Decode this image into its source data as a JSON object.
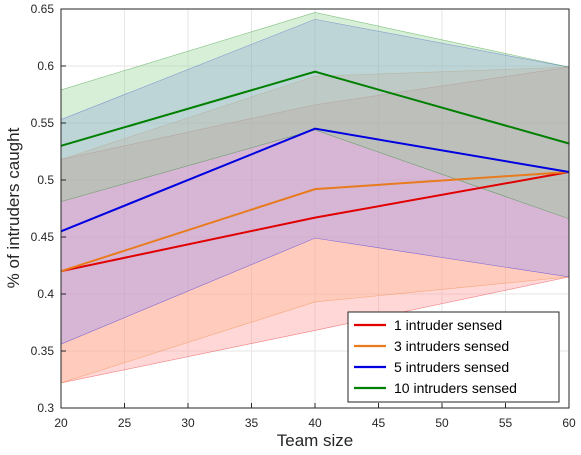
{
  "chart_data": {
    "type": "line",
    "xlabel": "Team size",
    "ylabel": "% of intruders caught",
    "x": [
      20,
      40,
      60
    ],
    "xlim": [
      20,
      60
    ],
    "ylim": [
      0.3,
      0.65
    ],
    "xticks": [
      "20",
      "25",
      "30",
      "35",
      "40",
      "45",
      "50",
      "55",
      "60"
    ],
    "yticks": [
      "0.3",
      "0.35",
      "0.4",
      "0.45",
      "0.5",
      "0.55",
      "0.6",
      "0.65"
    ],
    "grid": true,
    "legend_position": "bottom-right",
    "series": [
      {
        "name": "1 intruder sensed",
        "color": "#e00000",
        "fill": "#ff8c8c",
        "values": [
          0.42,
          0.467,
          0.507
        ],
        "lower": [
          0.322,
          0.368,
          0.415
        ],
        "upper": [
          0.518,
          0.566,
          0.599
        ]
      },
      {
        "name": "3 intruders sensed",
        "color": "#e87b1e",
        "fill": "#ffb48c",
        "values": [
          0.42,
          0.492,
          0.507
        ],
        "lower": [
          0.322,
          0.393,
          0.415
        ],
        "upper": [
          0.518,
          0.591,
          0.599
        ]
      },
      {
        "name": "5 intruders sensed",
        "color": "#0000e0",
        "fill": "#8c8cff",
        "values": [
          0.455,
          0.545,
          0.507
        ],
        "lower": [
          0.356,
          0.449,
          0.415
        ],
        "upper": [
          0.553,
          0.641,
          0.599
        ]
      },
      {
        "name": "10 intruders sensed",
        "color": "#008000",
        "fill": "#8cd28c",
        "values": [
          0.53,
          0.595,
          0.532
        ],
        "lower": [
          0.481,
          0.544,
          0.466
        ],
        "upper": [
          0.579,
          0.647,
          0.599
        ]
      }
    ]
  }
}
